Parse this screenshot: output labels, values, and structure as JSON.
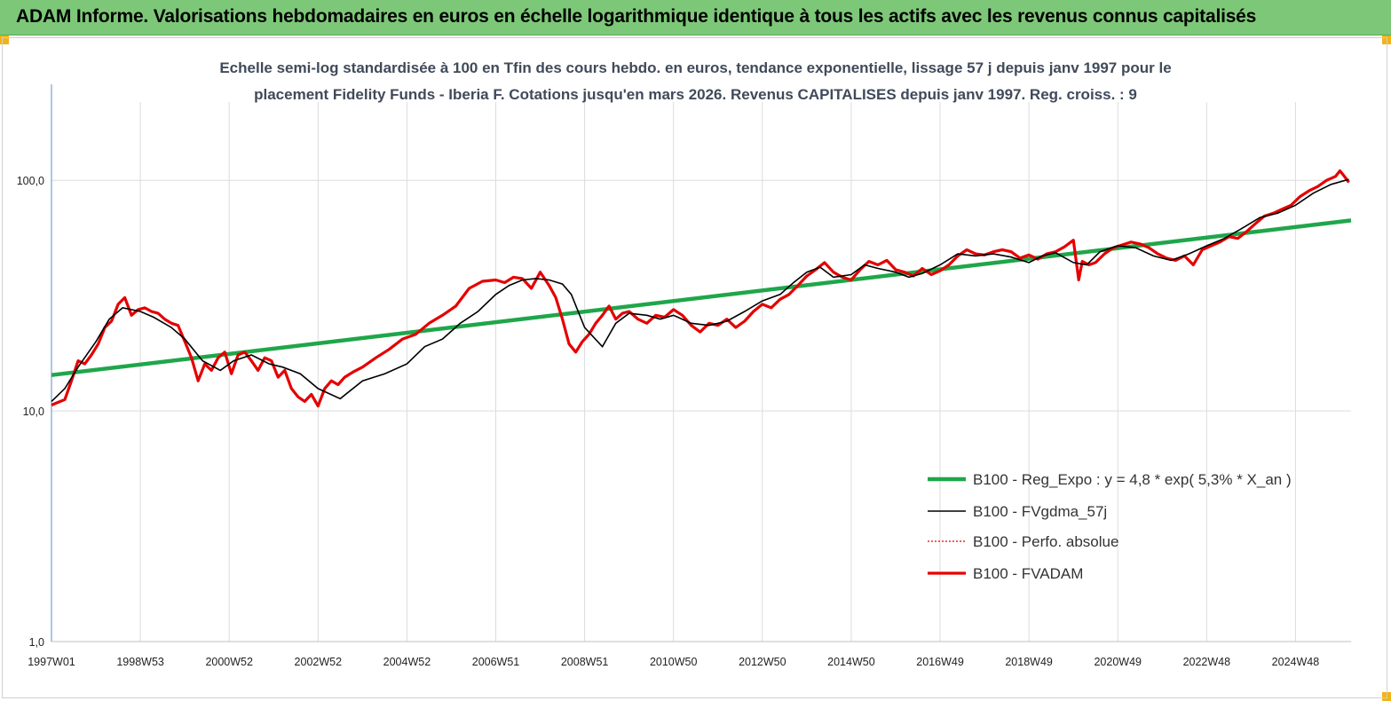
{
  "header": {
    "title": "ADAM Informe. Valorisations hebdomadaires en euros en échelle logarithmique identique à tous les actifs avec les revenus connus capitalisés"
  },
  "colors": {
    "banner": "#7dc878",
    "corner_marker": "#f2b318",
    "regression": "#1fa64a",
    "smoothed": "#000000",
    "absolute": "#e00000",
    "fvadam": "#e60000",
    "grid": "#dcdcdc",
    "axis": "#5b8fc9"
  },
  "chart_data": {
    "type": "line",
    "title": "Echelle semi-log standardisée à 100 en Tfin des cours hebdo. en euros, tendance exponentielle, lissage 57 j depuis janv 1997 pour le placement Fidelity Funds - Iberia F. Cotations jusqu'en mars 2026. Revenus CAPITALISES depuis janv 1997. Reg. croiss. : 9",
    "title_lines": [
      "Echelle semi-log standardisée à 100 en Tfin des cours hebdo. en euros, tendance exponentielle, lissage 57 j depuis janv 1997 pour le",
      "placement Fidelity Funds - Iberia F. Cotations jusqu'en mars 2026. Revenus CAPITALISES depuis janv 1997. Reg. croiss. : 9"
    ],
    "y_scale": "log",
    "ylim": [
      1,
      200
    ],
    "y_ticks": [
      {
        "value": 1,
        "label": "1,0"
      },
      {
        "value": 10,
        "label": "10,0"
      },
      {
        "value": 100,
        "label": "100,0"
      }
    ],
    "x_unit": "year",
    "xlim": [
      1997.0,
      2026.25
    ],
    "x_ticks": [
      {
        "x": 1997.0,
        "label": "1997W01"
      },
      {
        "x": 1999.0,
        "label": "1998W53"
      },
      {
        "x": 2001.0,
        "label": "2000W52"
      },
      {
        "x": 2003.0,
        "label": "2002W52"
      },
      {
        "x": 2005.0,
        "label": "2004W52"
      },
      {
        "x": 2007.0,
        "label": "2006W51"
      },
      {
        "x": 2009.0,
        "label": "2008W51"
      },
      {
        "x": 2011.0,
        "label": "2010W50"
      },
      {
        "x": 2013.0,
        "label": "2012W50"
      },
      {
        "x": 2015.0,
        "label": "2014W50"
      },
      {
        "x": 2017.0,
        "label": "2016W49"
      },
      {
        "x": 2019.0,
        "label": "2018W49"
      },
      {
        "x": 2021.0,
        "label": "2020W49"
      },
      {
        "x": 2023.0,
        "label": "2022W48"
      },
      {
        "x": 2025.0,
        "label": "2024W48"
      }
    ],
    "grid": true,
    "legend_position": "right",
    "series": [
      {
        "name": "B100 - Reg_Expo : y = 4,8 *  exp( 5,3% *  X_an )",
        "key": "reg",
        "x": [
          1997.0,
          2026.25
        ],
        "y": [
          14.3,
          67.0
        ]
      },
      {
        "name": "B100 - FVgdma_57j",
        "key": "smooth",
        "x": [
          1997.0,
          1997.3,
          1997.6,
          1998.0,
          1998.3,
          1998.6,
          1999.0,
          1999.3,
          1999.7,
          2000.0,
          2000.4,
          2000.8,
          2001.1,
          2001.5,
          2001.9,
          2002.2,
          2002.6,
          2003.0,
          2003.5,
          2004.0,
          2004.5,
          2005.0,
          2005.4,
          2005.8,
          2006.2,
          2006.6,
          2007.0,
          2007.3,
          2007.6,
          2007.9,
          2008.2,
          2008.5,
          2008.7,
          2009.0,
          2009.4,
          2009.7,
          2010.0,
          2010.4,
          2010.7,
          2011.0,
          2011.4,
          2011.8,
          2012.2,
          2012.6,
          2013.0,
          2013.4,
          2013.7,
          2014.0,
          2014.3,
          2014.6,
          2015.0,
          2015.3,
          2015.6,
          2016.0,
          2016.3,
          2016.6,
          2017.0,
          2017.4,
          2017.8,
          2018.2,
          2018.6,
          2019.0,
          2019.3,
          2019.6,
          2020.0,
          2020.3,
          2020.6,
          2021.0,
          2021.4,
          2021.8,
          2022.2,
          2022.6,
          2023.0,
          2023.4,
          2023.8,
          2024.2,
          2024.6,
          2025.0,
          2025.4,
          2025.8,
          2026.2
        ],
        "y": [
          11.0,
          12.5,
          15.5,
          20.0,
          25.0,
          28.0,
          27.0,
          25.5,
          23.0,
          20.5,
          16.5,
          15.0,
          16.5,
          17.5,
          16.0,
          15.5,
          14.5,
          12.5,
          11.3,
          13.5,
          14.5,
          16.0,
          19.0,
          20.5,
          24.0,
          27.0,
          32.0,
          35.0,
          37.0,
          37.5,
          37.0,
          35.5,
          32.0,
          23.0,
          19.0,
          24.0,
          26.5,
          26.0,
          25.0,
          26.0,
          24.0,
          23.5,
          24.5,
          27.0,
          30.0,
          32.0,
          36.0,
          40.0,
          42.0,
          38.0,
          39.0,
          43.0,
          41.5,
          40.0,
          38.0,
          39.5,
          43.0,
          48.0,
          47.0,
          48.0,
          46.5,
          44.0,
          47.0,
          48.5,
          44.0,
          43.0,
          49.0,
          52.0,
          51.0,
          47.0,
          45.0,
          48.0,
          52.0,
          56.0,
          62.0,
          69.0,
          72.0,
          78.0,
          88.0,
          96.0,
          101.0
        ]
      },
      {
        "name": "B100 - Perfo. absolue",
        "key": "abs",
        "x": [
          1997.0,
          1997.15,
          1997.3,
          1997.45,
          1997.6,
          1997.75,
          1997.9,
          1998.05,
          1998.2,
          1998.35,
          1998.5,
          1998.65,
          1998.8,
          1998.95,
          1999.1,
          1999.25,
          1999.4,
          1999.55,
          1999.7,
          1999.85,
          2000.0,
          2000.15,
          2000.3,
          2000.45,
          2000.6,
          2000.75,
          2000.9,
          2001.05,
          2001.2,
          2001.35,
          2001.5,
          2001.65,
          2001.8,
          2001.95,
          2002.1,
          2002.25,
          2002.4,
          2002.55,
          2002.7,
          2002.85,
          2003.0,
          2003.15,
          2003.3,
          2003.45,
          2003.6,
          2003.8,
          2004.0,
          2004.3,
          2004.6,
          2004.9,
          2005.2,
          2005.5,
          2005.8,
          2006.1,
          2006.4,
          2006.7,
          2007.0,
          2007.2,
          2007.4,
          2007.6,
          2007.8,
          2008.0,
          2008.2,
          2008.35,
          2008.5,
          2008.65,
          2008.8,
          2008.95,
          2009.1,
          2009.25,
          2009.4,
          2009.55,
          2009.7,
          2009.85,
          2010.0,
          2010.2,
          2010.4,
          2010.6,
          2010.8,
          2011.0,
          2011.2,
          2011.4,
          2011.6,
          2011.8,
          2012.0,
          2012.2,
          2012.4,
          2012.6,
          2012.8,
          2013.0,
          2013.2,
          2013.4,
          2013.6,
          2013.8,
          2014.0,
          2014.2,
          2014.4,
          2014.6,
          2014.8,
          2015.0,
          2015.2,
          2015.4,
          2015.6,
          2015.8,
          2016.0,
          2016.2,
          2016.4,
          2016.6,
          2016.8,
          2017.0,
          2017.2,
          2017.4,
          2017.6,
          2017.8,
          2018.0,
          2018.2,
          2018.4,
          2018.6,
          2018.8,
          2019.0,
          2019.2,
          2019.4,
          2019.6,
          2019.8,
          2020.0,
          2020.12,
          2020.2,
          2020.35,
          2020.5,
          2020.7,
          2020.9,
          2021.1,
          2021.3,
          2021.5,
          2021.7,
          2021.9,
          2022.1,
          2022.3,
          2022.5,
          2022.7,
          2022.9,
          2023.1,
          2023.3,
          2023.5,
          2023.7,
          2023.9,
          2024.1,
          2024.3,
          2024.5,
          2024.7,
          2024.9,
          2025.1,
          2025.3,
          2025.5,
          2025.7,
          2025.9,
          2026.0,
          2026.1,
          2026.2
        ],
        "y": [
          10.6,
          10.9,
          11.2,
          13.5,
          16.5,
          16.0,
          17.5,
          19.5,
          23.0,
          24.5,
          29.0,
          31.0,
          26.0,
          27.5,
          28.0,
          27.0,
          26.5,
          25.0,
          24.0,
          23.5,
          20.0,
          17.0,
          13.5,
          16.0,
          15.0,
          17.0,
          18.0,
          14.5,
          17.5,
          18.0,
          16.5,
          15.0,
          17.0,
          16.5,
          14.0,
          15.0,
          12.5,
          11.5,
          11.0,
          11.8,
          10.5,
          12.5,
          13.5,
          13.0,
          14.0,
          14.8,
          15.5,
          17.0,
          18.5,
          20.5,
          21.5,
          24.0,
          26.0,
          28.5,
          34.0,
          36.5,
          37.0,
          36.0,
          38.0,
          37.5,
          34.0,
          40.0,
          35.0,
          31.0,
          25.0,
          19.5,
          18.0,
          20.0,
          21.5,
          24.0,
          26.0,
          28.5,
          25.0,
          26.5,
          27.0,
          25.0,
          24.0,
          26.0,
          25.5,
          27.5,
          26.0,
          23.5,
          22.0,
          24.0,
          23.5,
          25.0,
          23.0,
          24.5,
          27.0,
          29.0,
          28.0,
          30.5,
          32.0,
          35.0,
          38.5,
          41.0,
          44.0,
          40.0,
          38.0,
          37.0,
          41.0,
          44.5,
          43.0,
          45.0,
          41.0,
          40.0,
          38.5,
          41.5,
          39.0,
          40.5,
          43.0,
          47.0,
          50.0,
          48.0,
          47.5,
          49.0,
          50.0,
          49.0,
          46.0,
          47.5,
          45.5,
          48.0,
          49.0,
          51.5,
          55.0,
          37.0,
          44.5,
          43.0,
          44.0,
          48.0,
          51.0,
          52.5,
          54.0,
          53.0,
          51.0,
          48.0,
          46.0,
          45.0,
          47.0,
          43.0,
          50.0,
          52.0,
          54.0,
          57.0,
          56.0,
          60.0,
          65.0,
          70.0,
          72.0,
          75.0,
          78.0,
          85.0,
          90.0,
          94.0,
          100.0,
          104.0,
          110.0,
          104.0,
          98.0
        ]
      },
      {
        "name": "B100 - FVADAM",
        "key": "fvadam",
        "same_values_as": "abs"
      }
    ]
  }
}
